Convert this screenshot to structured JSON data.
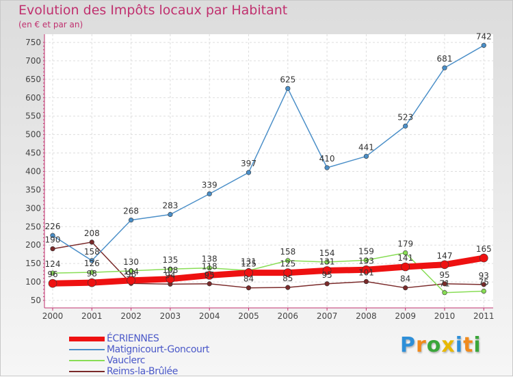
{
  "chart_data": {
    "type": "line",
    "title": "Evolution des Impôts locaux par Habitant",
    "subtitle": "(en € et par an)",
    "xlabel": "",
    "ylabel": "",
    "ylim": [
      50,
      750
    ],
    "yticks": [
      50,
      100,
      150,
      200,
      250,
      300,
      350,
      400,
      450,
      500,
      550,
      600,
      650,
      700,
      750
    ],
    "x": [
      "2000",
      "2001",
      "2002",
      "2003",
      "2004",
      "2005",
      "2006",
      "2007",
      "2008",
      "2009",
      "2010",
      "2011"
    ],
    "series": [
      {
        "name": "ÉCRIENNES",
        "color": "#ee1111",
        "values": [
          96,
          98,
          104,
          108,
          118,
          125,
          125,
          131,
          133,
          141,
          147,
          165
        ],
        "labels": [
          "96",
          "98",
          "104",
          "108",
          "118",
          "125",
          "125",
          "131",
          "133",
          "141",
          "147",
          "165"
        ]
      },
      {
        "name": "Matignicourt-Goncourt",
        "color": "#4b8fc8",
        "values": [
          226,
          158,
          268,
          283,
          339,
          397,
          625,
          410,
          441,
          523,
          681,
          742
        ],
        "labels": [
          "226",
          "158",
          "268",
          "283",
          "339",
          "397",
          "625",
          "410",
          "441",
          "523",
          "681",
          "742"
        ]
      },
      {
        "name": "Vauclerc",
        "color": "#88dd55",
        "values": [
          124,
          126,
          130,
          135,
          138,
          131,
          158,
          154,
          159,
          179,
          71,
          75
        ],
        "labels": [
          "124",
          "126",
          "130",
          "135",
          "138",
          "131",
          "158",
          "154",
          "159",
          "179",
          "71",
          "75"
        ]
      },
      {
        "name": "Reims-la-Brûlée",
        "color": "#7a2a2a",
        "values": [
          190,
          208,
          96,
          94,
          95,
          84,
          85,
          95,
          101,
          84,
          95,
          93
        ],
        "labels": [
          "190",
          "208",
          "96",
          "94",
          "95",
          "84",
          "85",
          "95",
          "101",
          "84",
          "95",
          "93"
        ]
      }
    ],
    "legend_position": "bottom-left"
  },
  "logo": {
    "text": "Proxiti",
    "letters": [
      {
        "char": "P",
        "color": "#2e8fd8"
      },
      {
        "char": "r",
        "color": "#f08a1c"
      },
      {
        "char": "o",
        "color": "#3aa63a"
      },
      {
        "char": "x",
        "color": "#e8b800"
      },
      {
        "char": "i",
        "color": "#2e8fd8"
      },
      {
        "char": "t",
        "color": "#f08a1c"
      },
      {
        "char": "i",
        "color": "#3aa63a"
      }
    ]
  }
}
